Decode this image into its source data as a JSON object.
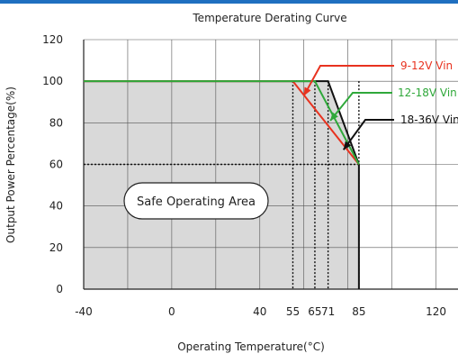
{
  "chart_data": {
    "type": "line",
    "title": "Temperature Derating Curve",
    "xlabel": "Operating Temperature(°C)",
    "ylabel": "Output Power Percentage(%)",
    "xlim": [
      -40,
      130
    ],
    "ylim": [
      0,
      120
    ],
    "x_ticks": [
      {
        "value": -40,
        "label": "-40"
      },
      {
        "value": 0,
        "label": "0"
      },
      {
        "value": 40,
        "label": "40"
      },
      {
        "value": 55,
        "label": "55"
      },
      {
        "value": 65,
        "label": "65"
      },
      {
        "value": 71,
        "label": "71"
      },
      {
        "value": 85,
        "label": "85"
      },
      {
        "value": 120,
        "label": "120"
      }
    ],
    "y_ticks": [
      0,
      20,
      40,
      60,
      80,
      100,
      120
    ],
    "grid": true,
    "safe_area": {
      "label": "Safe Operating Area",
      "x": [
        -40,
        65,
        71,
        85,
        85,
        -40
      ],
      "y": [
        100,
        100,
        100,
        60,
        0,
        0
      ]
    },
    "series": [
      {
        "name": "9-12V Vin",
        "color": "#e8321f",
        "x": [
          -40,
          55,
          85
        ],
        "y": [
          100,
          100,
          60
        ]
      },
      {
        "name": "12-18V Vin",
        "color": "#2fa83a",
        "x": [
          -40,
          65,
          85
        ],
        "y": [
          100,
          100,
          60
        ]
      },
      {
        "name": "18-36V Vin",
        "color": "#111111",
        "x": [
          -40,
          71,
          85,
          85
        ],
        "y": [
          100,
          100,
          60,
          0
        ]
      }
    ],
    "reference_lines": {
      "vertical": [
        55,
        65,
        71,
        85
      ],
      "horizontal": [
        60
      ]
    }
  }
}
